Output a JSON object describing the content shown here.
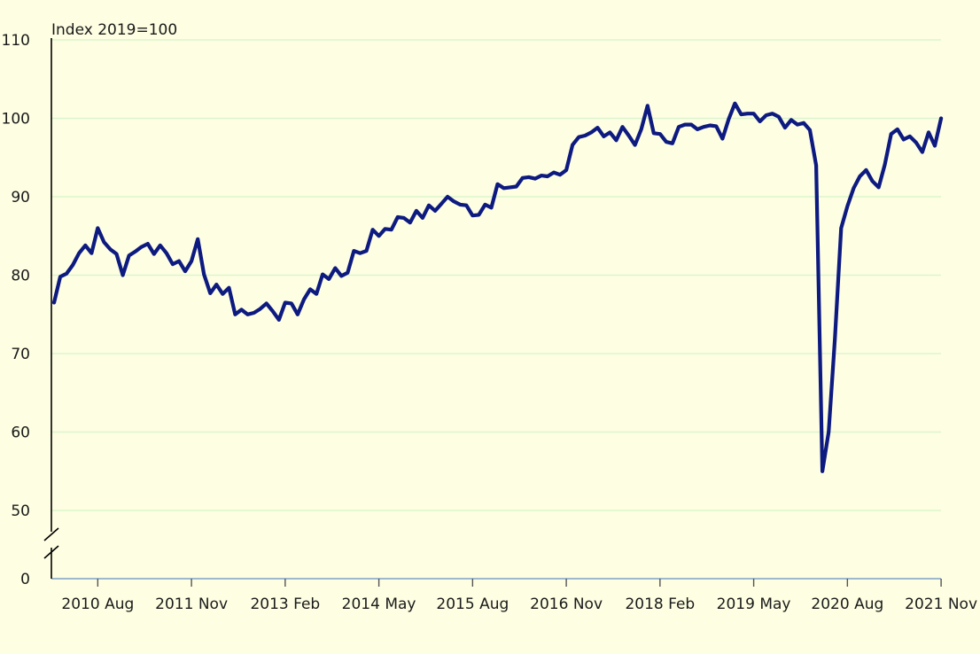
{
  "chart_data": {
    "type": "line",
    "title": "",
    "subtitle": "",
    "unit_label": "Index 2019=100",
    "xlabel": "",
    "ylabel": "",
    "ylim": [
      50,
      110
    ],
    "y_ticks": [
      50,
      60,
      70,
      80,
      90,
      100,
      110
    ],
    "y_baseline_label": "0",
    "y_axis_break": true,
    "x_ticks": [
      "2010 Aug",
      "2011 Nov",
      "2013 Feb",
      "2014 May",
      "2015 Aug",
      "2016 Nov",
      "2018 Feb",
      "2019 May",
      "2020 Aug",
      "2021 Nov"
    ],
    "x_start": "2010 Jan",
    "grid": true,
    "series_color": "#0d1a80",
    "grid_color": "#dbf5cc",
    "axis_color": "#000000",
    "series": [
      {
        "name": "",
        "values": [
          76.5,
          79.8,
          80.2,
          81.3,
          82.8,
          83.8,
          82.8,
          86,
          84.2,
          83.3,
          82.7,
          80,
          82.5,
          83,
          83.6,
          84,
          82.7,
          83.8,
          82.8,
          81.4,
          81.8,
          80.5,
          81.8,
          84.6,
          80.1,
          77.7,
          78.8,
          77.6,
          78.4,
          75,
          75.6,
          75,
          75.2,
          75.7,
          76.4,
          75.4,
          74.3,
          76.5,
          76.4,
          75,
          76.9,
          78.2,
          77.6,
          80.1,
          79.5,
          80.9,
          79.9,
          80.3,
          83.1,
          82.8,
          83.1,
          85.8,
          85,
          85.9,
          85.8,
          87.4,
          87.3,
          86.7,
          88.2,
          87.3,
          88.9,
          88.2,
          89.1,
          90,
          89.4,
          89,
          88.9,
          87.6,
          87.7,
          89,
          88.6,
          91.6,
          91.1,
          91.2,
          91.3,
          92.4,
          92.5,
          92.3,
          92.7,
          92.6,
          93.1,
          92.8,
          93.4,
          96.6,
          97.6,
          97.8,
          98.2,
          98.8,
          97.7,
          98.2,
          97.2,
          98.9,
          97.8,
          96.6,
          98.6,
          101.6,
          98.1,
          98,
          97,
          96.8,
          98.9,
          99.2,
          99.2,
          98.6,
          98.9,
          99.1,
          99,
          97.4,
          99.9,
          101.9,
          100.5,
          100.6,
          100.6,
          99.6,
          100.4,
          100.6,
          100.2,
          98.8,
          99.8,
          99.2,
          99.4,
          98.5,
          94,
          55,
          60,
          72,
          86,
          88.8,
          91.1,
          92.6,
          93.4,
          92,
          91.2,
          94.1,
          98,
          98.6,
          97.3,
          97.7,
          96.9,
          95.7,
          98.2,
          96.5,
          100
        ]
      }
    ]
  }
}
